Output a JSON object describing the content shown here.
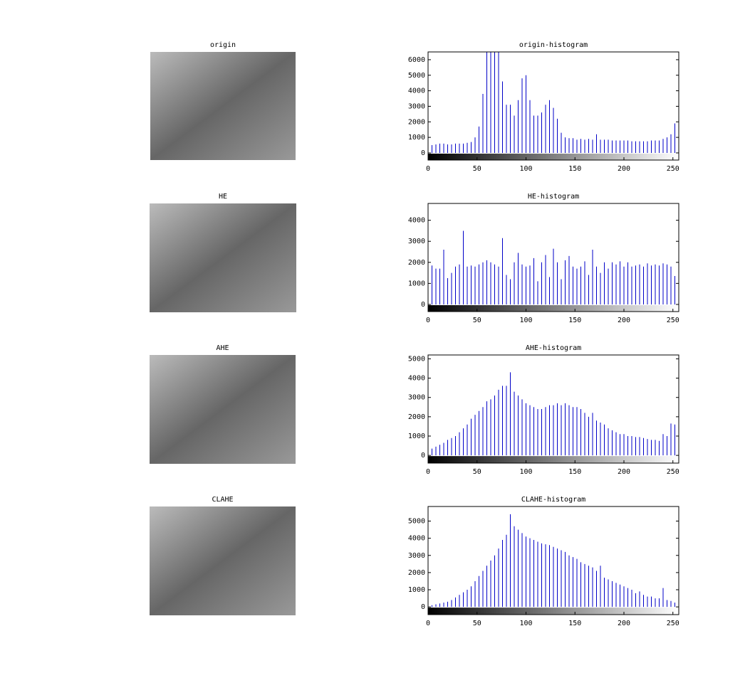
{
  "images": [
    {
      "title": "origin"
    },
    {
      "title": "HE"
    },
    {
      "title": "AHE"
    },
    {
      "title": "CLAHE"
    }
  ],
  "chart_data": [
    {
      "type": "stem",
      "title": "origin-histogram",
      "color": "#0000c8",
      "xlim": [
        0,
        256
      ],
      "xticks": [
        0,
        50,
        100,
        150,
        200,
        250
      ],
      "ylim": [
        -460,
        6500
      ],
      "yticks": [
        0,
        1000,
        2000,
        3000,
        4000,
        5000,
        6000
      ],
      "x": [
        0,
        4,
        8,
        12,
        16,
        20,
        24,
        28,
        32,
        36,
        40,
        44,
        48,
        52,
        56,
        60,
        64,
        68,
        72,
        76,
        80,
        84,
        88,
        92,
        96,
        100,
        104,
        108,
        112,
        116,
        120,
        124,
        128,
        132,
        136,
        140,
        144,
        148,
        152,
        156,
        160,
        164,
        168,
        172,
        176,
        180,
        184,
        188,
        192,
        196,
        200,
        204,
        208,
        212,
        216,
        220,
        224,
        228,
        232,
        236,
        240,
        244,
        248,
        252
      ],
      "values": [
        450,
        500,
        550,
        600,
        600,
        550,
        550,
        600,
        600,
        600,
        650,
        700,
        1000,
        1700,
        3800,
        7000,
        8000,
        7500,
        7000,
        4600,
        3100,
        3100,
        2400,
        3400,
        4800,
        5000,
        3400,
        2400,
        2400,
        2600,
        3100,
        3400,
        2900,
        2200,
        1300,
        1000,
        950,
        950,
        850,
        900,
        850,
        900,
        850,
        1200,
        850,
        850,
        850,
        800,
        800,
        800,
        800,
        800,
        750,
        750,
        750,
        750,
        750,
        800,
        800,
        800,
        900,
        1000,
        1200,
        1900
      ]
    },
    {
      "type": "stem",
      "title": "HE-histogram",
      "color": "#0000c8",
      "xlim": [
        0,
        256
      ],
      "xticks": [
        0,
        50,
        100,
        150,
        200,
        250
      ],
      "ylim": [
        -340,
        4800
      ],
      "yticks": [
        0,
        1000,
        2000,
        3000,
        4000
      ],
      "x": [
        0,
        4,
        8,
        12,
        16,
        20,
        24,
        28,
        32,
        36,
        40,
        44,
        48,
        52,
        56,
        60,
        64,
        68,
        72,
        76,
        80,
        84,
        88,
        92,
        96,
        100,
        104,
        108,
        112,
        116,
        120,
        124,
        128,
        132,
        136,
        140,
        144,
        148,
        152,
        156,
        160,
        164,
        168,
        172,
        176,
        180,
        184,
        188,
        192,
        196,
        200,
        204,
        208,
        212,
        216,
        220,
        224,
        228,
        232,
        236,
        240,
        244,
        248,
        252
      ],
      "values": [
        1900,
        1850,
        1700,
        1700,
        2600,
        1250,
        1500,
        1800,
        1900,
        3500,
        1800,
        1850,
        1800,
        1900,
        2000,
        2100,
        2000,
        1900,
        1800,
        3150,
        1400,
        1200,
        2000,
        2450,
        1900,
        1800,
        1850,
        2200,
        1100,
        2000,
        2350,
        1300,
        2650,
        2000,
        1200,
        2100,
        2300,
        1800,
        1700,
        1800,
        2050,
        1400,
        2600,
        1800,
        1500,
        2000,
        1700,
        2000,
        1900,
        2050,
        1800,
        2000,
        1800,
        1850,
        1900,
        1800,
        1950,
        1850,
        1900,
        1850,
        1950,
        1900,
        1800,
        1350
      ]
    },
    {
      "type": "stem",
      "title": "AHE-histogram",
      "color": "#0000c8",
      "xlim": [
        0,
        256
      ],
      "xticks": [
        0,
        50,
        100,
        150,
        200,
        250
      ],
      "ylim": [
        -400,
        5200
      ],
      "yticks": [
        0,
        1000,
        2000,
        3000,
        4000,
        5000
      ],
      "x": [
        0,
        4,
        8,
        12,
        16,
        20,
        24,
        28,
        32,
        36,
        40,
        44,
        48,
        52,
        56,
        60,
        64,
        68,
        72,
        76,
        80,
        84,
        88,
        92,
        96,
        100,
        104,
        108,
        112,
        116,
        120,
        124,
        128,
        132,
        136,
        140,
        144,
        148,
        152,
        156,
        160,
        164,
        168,
        172,
        176,
        180,
        184,
        188,
        192,
        196,
        200,
        204,
        208,
        212,
        216,
        220,
        224,
        228,
        232,
        236,
        240,
        244,
        248,
        252
      ],
      "values": [
        300,
        350,
        450,
        550,
        650,
        800,
        900,
        1000,
        1200,
        1400,
        1600,
        1900,
        2100,
        2300,
        2500,
        2800,
        2900,
        3100,
        3400,
        3600,
        3600,
        4300,
        3300,
        3100,
        2900,
        2700,
        2600,
        2500,
        2400,
        2400,
        2500,
        2600,
        2600,
        2700,
        2600,
        2700,
        2600,
        2500,
        2500,
        2400,
        2200,
        2000,
        2200,
        1800,
        1700,
        1600,
        1400,
        1300,
        1200,
        1100,
        1100,
        1000,
        1000,
        950,
        950,
        900,
        850,
        800,
        800,
        750,
        1100,
        1000,
        1650,
        1600
      ]
    },
    {
      "type": "stem",
      "title": "CLAHE-histogram",
      "color": "#0000c8",
      "xlim": [
        0,
        256
      ],
      "xticks": [
        0,
        50,
        100,
        150,
        200,
        250
      ],
      "ylim": [
        -450,
        5850
      ],
      "yticks": [
        0,
        1000,
        2000,
        3000,
        4000,
        5000
      ],
      "x": [
        0,
        4,
        8,
        12,
        16,
        20,
        24,
        28,
        32,
        36,
        40,
        44,
        48,
        52,
        56,
        60,
        64,
        68,
        72,
        76,
        80,
        84,
        88,
        92,
        96,
        100,
        104,
        108,
        112,
        116,
        120,
        124,
        128,
        132,
        136,
        140,
        144,
        148,
        152,
        156,
        160,
        164,
        168,
        172,
        176,
        180,
        184,
        188,
        192,
        196,
        200,
        204,
        208,
        212,
        216,
        220,
        224,
        228,
        232,
        236,
        240,
        244,
        248,
        252
      ],
      "values": [
        100,
        100,
        150,
        200,
        250,
        300,
        400,
        550,
        700,
        850,
        1000,
        1200,
        1500,
        1800,
        2100,
        2400,
        2700,
        3000,
        3400,
        3900,
        4200,
        5400,
        4700,
        4500,
        4300,
        4100,
        4000,
        3900,
        3800,
        3700,
        3650,
        3600,
        3500,
        3400,
        3300,
        3200,
        3000,
        2900,
        2800,
        2600,
        2500,
        2400,
        2300,
        2100,
        2400,
        1700,
        1600,
        1500,
        1400,
        1300,
        1200,
        1100,
        1000,
        800,
        900,
        700,
        600,
        600,
        500,
        500,
        1100,
        400,
        350,
        250
      ]
    }
  ]
}
